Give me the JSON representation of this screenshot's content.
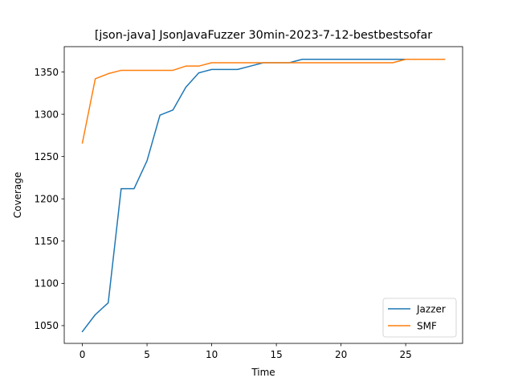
{
  "chart_data": {
    "type": "line",
    "title": "[json-java] JsonJavaFuzzer 30min-2023-7-12-bestbestsofar",
    "xlabel": "Time",
    "ylabel": "Coverage",
    "xlim": [
      -1.4,
      29.4
    ],
    "ylim": [
      1029,
      1380
    ],
    "xticks": [
      0,
      5,
      10,
      15,
      20,
      25
    ],
    "yticks": [
      1050,
      1100,
      1150,
      1200,
      1250,
      1300,
      1350
    ],
    "grid": false,
    "legend_position": "lower-right",
    "x": [
      0,
      1,
      2,
      3,
      4,
      5,
      6,
      7,
      8,
      9,
      10,
      11,
      12,
      13,
      14,
      15,
      16,
      17,
      18,
      19,
      20,
      21,
      22,
      23,
      24,
      25,
      26,
      27,
      28
    ],
    "series": [
      {
        "name": "Jazzer",
        "color": "#1f77b4",
        "values": [
          1043,
          1063,
          1077,
          1212,
          1212,
          1245,
          1299,
          1305,
          1332,
          1349,
          1353,
          1353,
          1353,
          1357,
          1361,
          1361,
          1361,
          1365,
          1365,
          1365,
          1365,
          1365,
          1365,
          1365,
          1365,
          1365,
          1365,
          1365,
          1365
        ]
      },
      {
        "name": "SMF",
        "color": "#ff7f0e",
        "values": [
          1266,
          1342,
          1348,
          1352,
          1352,
          1352,
          1352,
          1352,
          1357,
          1357,
          1361,
          1361,
          1361,
          1361,
          1361,
          1361,
          1361,
          1361,
          1361,
          1361,
          1361,
          1361,
          1361,
          1361,
          1361,
          1365,
          1365,
          1365,
          1365
        ]
      }
    ]
  }
}
